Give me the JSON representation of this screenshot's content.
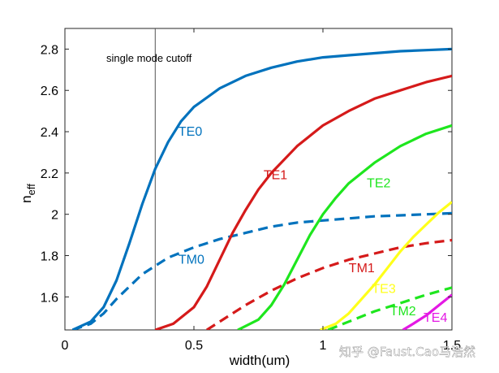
{
  "chart_data": {
    "type": "line",
    "title": "",
    "xlabel": "width(um)",
    "ylabel": "n",
    "ylabel_sub": "eff",
    "xlim": [
      0,
      1.5
    ],
    "ylim": [
      1.44,
      2.9
    ],
    "xticks": [
      0,
      0.5,
      1,
      1.5
    ],
    "xtick_labels": [
      "0",
      "0.5",
      "1",
      "1.5"
    ],
    "yticks": [
      1.6,
      1.8,
      2.0,
      2.2,
      2.4,
      2.6,
      2.8
    ],
    "ytick_labels": [
      "1.6",
      "1.8",
      "2",
      "2.2",
      "2.4",
      "2.6",
      "2.8"
    ],
    "grid": false,
    "cutoff": {
      "x": 0.35,
      "label": "single mode cutoff"
    },
    "series": [
      {
        "name": "TE0",
        "color": "#0072BD",
        "dash": false,
        "x": [
          0.03,
          0.1,
          0.15,
          0.2,
          0.25,
          0.3,
          0.35,
          0.4,
          0.45,
          0.5,
          0.6,
          0.7,
          0.8,
          0.9,
          1.0,
          1.1,
          1.2,
          1.3,
          1.4,
          1.5
        ],
        "y": [
          1.44,
          1.48,
          1.55,
          1.68,
          1.86,
          2.05,
          2.22,
          2.35,
          2.45,
          2.52,
          2.61,
          2.67,
          2.71,
          2.74,
          2.76,
          2.77,
          2.78,
          2.79,
          2.795,
          2.8
        ]
      },
      {
        "name": "TM0",
        "color": "#0072BD",
        "dash": true,
        "x": [
          0.03,
          0.1,
          0.15,
          0.2,
          0.25,
          0.3,
          0.35,
          0.4,
          0.5,
          0.6,
          0.7,
          0.8,
          0.9,
          1.0,
          1.1,
          1.2,
          1.3,
          1.4,
          1.5
        ],
        "y": [
          1.44,
          1.47,
          1.52,
          1.59,
          1.65,
          1.71,
          1.75,
          1.79,
          1.84,
          1.88,
          1.91,
          1.94,
          1.96,
          1.97,
          1.98,
          1.99,
          1.995,
          2.0,
          2.005
        ]
      },
      {
        "name": "TE1",
        "color": "#D51A1A",
        "dash": false,
        "x": [
          0.35,
          0.42,
          0.5,
          0.55,
          0.6,
          0.65,
          0.7,
          0.75,
          0.8,
          0.9,
          1.0,
          1.1,
          1.2,
          1.3,
          1.4,
          1.5
        ],
        "y": [
          1.44,
          1.47,
          1.55,
          1.65,
          1.78,
          1.91,
          2.02,
          2.12,
          2.2,
          2.33,
          2.43,
          2.5,
          2.56,
          2.6,
          2.64,
          2.67
        ]
      },
      {
        "name": "TM1",
        "color": "#D51A1A",
        "dash": true,
        "x": [
          0.55,
          0.6,
          0.7,
          0.8,
          0.9,
          1.0,
          1.1,
          1.2,
          1.3,
          1.4,
          1.5
        ],
        "y": [
          1.44,
          1.48,
          1.56,
          1.63,
          1.69,
          1.74,
          1.78,
          1.81,
          1.84,
          1.86,
          1.875
        ]
      },
      {
        "name": "TE2",
        "color": "#1EE61E",
        "dash": false,
        "x": [
          0.67,
          0.75,
          0.8,
          0.85,
          0.9,
          0.95,
          1.0,
          1.05,
          1.1,
          1.2,
          1.3,
          1.4,
          1.5
        ],
        "y": [
          1.44,
          1.49,
          1.56,
          1.66,
          1.78,
          1.9,
          2.0,
          2.08,
          2.15,
          2.25,
          2.33,
          2.39,
          2.43
        ]
      },
      {
        "name": "TM2",
        "color": "#1EE61E",
        "dash": true,
        "x": [
          1.02,
          1.1,
          1.2,
          1.3,
          1.4,
          1.5
        ],
        "y": [
          1.44,
          1.48,
          1.53,
          1.57,
          1.61,
          1.645
        ]
      },
      {
        "name": "TE3",
        "color": "#FFFF1A",
        "dash": false,
        "x": [
          0.99,
          1.05,
          1.1,
          1.15,
          1.2,
          1.25,
          1.3,
          1.35,
          1.4,
          1.45,
          1.5
        ],
        "y": [
          1.44,
          1.47,
          1.52,
          1.59,
          1.66,
          1.74,
          1.82,
          1.89,
          1.95,
          2.01,
          2.06
        ]
      },
      {
        "name": "TE4",
        "color": "#E419E4",
        "dash": false,
        "x": [
          1.31,
          1.35,
          1.4,
          1.45,
          1.5
        ],
        "y": [
          1.44,
          1.47,
          1.51,
          1.56,
          1.61
        ]
      }
    ],
    "labels": [
      {
        "text": "TE0",
        "color": "#0072BD",
        "x": 0.44,
        "y": 2.38
      },
      {
        "text": "TM0",
        "color": "#0072BD",
        "x": 0.44,
        "y": 1.76
      },
      {
        "text": "TE1",
        "color": "#D51A1A",
        "x": 0.77,
        "y": 2.17
      },
      {
        "text": "TM1",
        "color": "#D51A1A",
        "x": 1.1,
        "y": 1.72
      },
      {
        "text": "TE2",
        "color": "#1EE61E",
        "x": 1.17,
        "y": 2.13
      },
      {
        "text": "TE3",
        "color": "#FFFF1A",
        "x": 1.19,
        "y": 1.62
      },
      {
        "text": "TM2",
        "color": "#1EE61E",
        "x": 1.26,
        "y": 1.51
      },
      {
        "text": "TE4",
        "color": "#E419E4",
        "x": 1.39,
        "y": 1.48
      }
    ]
  },
  "watermark": "知乎 @Faust.Cao马浩然"
}
